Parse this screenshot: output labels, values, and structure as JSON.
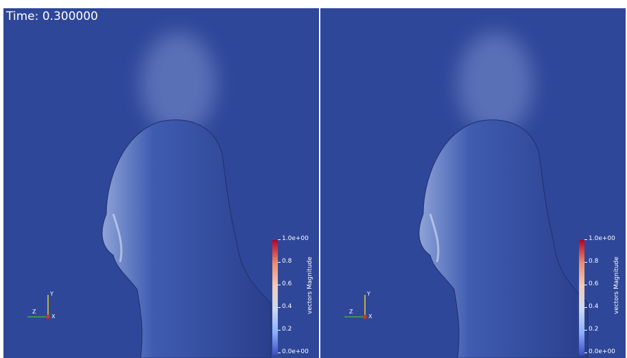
{
  "time_label": "Time: 0.300000",
  "views": [
    {
      "axes": {
        "y": "Y",
        "z": "Z",
        "x": "X"
      },
      "colorbar": {
        "title": "vectors Magnitude",
        "ticks": [
          "1.0e+00",
          "0.8",
          "0.6",
          "0.4",
          "0.2",
          "0.0e+00"
        ]
      }
    },
    {
      "axes": {
        "y": "Y",
        "z": "Z",
        "x": "X"
      },
      "colorbar": {
        "title": "vectors Magnitude",
        "ticks": [
          "1.0e+00",
          "0.8",
          "0.6",
          "0.4",
          "0.2",
          "0.0e+00"
        ]
      }
    }
  ]
}
